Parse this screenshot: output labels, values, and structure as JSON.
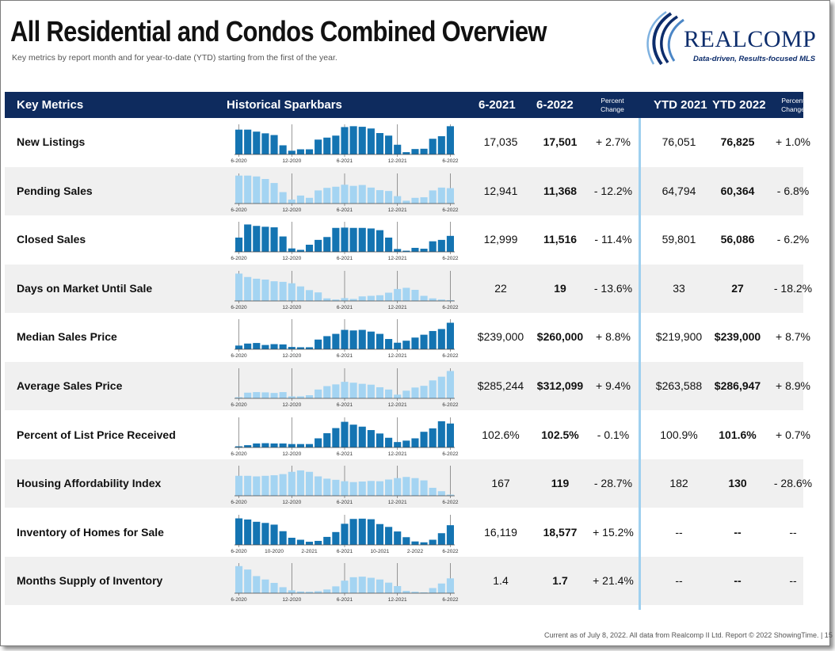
{
  "header": {
    "title": "All Residential and Condos Combined Overview",
    "subtitle": "Key metrics by report month and for year-to-date (YTD) starting from the first of the year."
  },
  "logo": {
    "name": "REALCOMP",
    "tagline": "Data-driven, Results-focused MLS"
  },
  "table_header": {
    "key_metrics": "Key Metrics",
    "historical": "Historical Sparkbars",
    "col_6_2021": "6-2021",
    "col_6_2022": "6-2022",
    "pct_change_1": "Percent",
    "pct_change_2": "Change",
    "ytd_2021": "YTD 2021",
    "ytd_2022": "YTD 2022"
  },
  "colors": {
    "header_bg": "#0e2b5e",
    "dark_bar": "#1474b2",
    "light_bar": "#a4d4f2",
    "divider": "#9fd0ef",
    "alt_row": "#f0f0f0"
  },
  "sparkbar_labels_default": [
    "6-2020",
    "12-2020",
    "6-2021",
    "12-2021",
    "6-2022"
  ],
  "sparkbar_labels_inventory": [
    "6-2020",
    "10-2020",
    "2-2021",
    "6-2021",
    "10-2021",
    "2-2022",
    "6-2022"
  ],
  "rows": [
    {
      "metric": "New Listings",
      "v2021": "17,035",
      "v2022": "17,501",
      "pct": "+ 2.7%",
      "ytd2021": "76,051",
      "ytd2022": "76,825",
      "ytdpct": "+ 1.0%",
      "style": "dark",
      "labels": "default",
      "bars": [
        0.87,
        0.87,
        0.8,
        0.74,
        0.68,
        0.32,
        0.13,
        0.18,
        0.18,
        0.52,
        0.59,
        0.66,
        0.96,
        0.99,
        0.97,
        0.91,
        0.75,
        0.66,
        0.34,
        0.08,
        0.19,
        0.2,
        0.55,
        0.64,
        0.99
      ]
    },
    {
      "metric": "Pending Sales",
      "v2021": "12,941",
      "v2022": "11,368",
      "pct": "- 12.2%",
      "ytd2021": "64,794",
      "ytd2022": "60,364",
      "ytdpct": "- 6.8%",
      "style": "light",
      "labels": "default",
      "bars": [
        0.98,
        0.98,
        0.95,
        0.86,
        0.72,
        0.4,
        0.14,
        0.28,
        0.2,
        0.46,
        0.55,
        0.59,
        0.66,
        0.62,
        0.65,
        0.56,
        0.47,
        0.44,
        0.26,
        0.1,
        0.2,
        0.22,
        0.46,
        0.56,
        0.54
      ]
    },
    {
      "metric": "Closed Sales",
      "v2021": "12,999",
      "v2022": "11,516",
      "pct": "- 11.4%",
      "ytd2021": "59,801",
      "ytd2022": "56,086",
      "ytdpct": "- 6.2%",
      "style": "dark",
      "labels": "default",
      "bars": [
        0.5,
        0.96,
        0.91,
        0.88,
        0.86,
        0.54,
        0.12,
        0.07,
        0.25,
        0.42,
        0.52,
        0.84,
        0.85,
        0.84,
        0.84,
        0.82,
        0.76,
        0.5,
        0.1,
        0.04,
        0.14,
        0.11,
        0.37,
        0.42,
        0.56
      ]
    },
    {
      "metric": "Days on Market Until Sale",
      "v2021": "22",
      "v2022": "19",
      "pct": "- 13.6%",
      "ytd2021": "33",
      "ytd2022": "27",
      "ytdpct": "- 18.2%",
      "style": "light",
      "labels": "default",
      "bars": [
        0.96,
        0.84,
        0.78,
        0.75,
        0.69,
        0.67,
        0.62,
        0.51,
        0.38,
        0.3,
        0.09,
        0.05,
        0.1,
        0.07,
        0.16,
        0.18,
        0.2,
        0.29,
        0.42,
        0.46,
        0.39,
        0.18,
        0.09,
        0.05,
        0.03
      ]
    },
    {
      "metric": "Median Sales Price",
      "v2021": "$239,000",
      "v2022": "$260,000",
      "pct": "+ 8.8%",
      "ytd2021": "$219,900",
      "ytd2022": "$239,000",
      "ytdpct": "+ 8.7%",
      "style": "dark",
      "labels": "default",
      "bars": [
        0.13,
        0.2,
        0.22,
        0.15,
        0.18,
        0.17,
        0.08,
        0.07,
        0.07,
        0.34,
        0.46,
        0.54,
        0.68,
        0.66,
        0.68,
        0.62,
        0.54,
        0.36,
        0.23,
        0.3,
        0.41,
        0.51,
        0.64,
        0.71,
        0.93
      ]
    },
    {
      "metric": "Average Sales Price",
      "v2021": "$285,244",
      "v2022": "$312,099",
      "pct": "+ 9.4%",
      "ytd2021": "$263,588",
      "ytd2022": "$286,947",
      "ytdpct": "+ 8.9%",
      "style": "light",
      "labels": "default",
      "bars": [
        0.04,
        0.2,
        0.22,
        0.21,
        0.19,
        0.22,
        0.07,
        0.07,
        0.11,
        0.31,
        0.43,
        0.49,
        0.58,
        0.55,
        0.51,
        0.48,
        0.39,
        0.31,
        0.13,
        0.27,
        0.38,
        0.44,
        0.63,
        0.76,
        0.96
      ]
    },
    {
      "metric": "Percent of List Price Received",
      "v2021": "102.6%",
      "v2022": "102.5%",
      "pct": "- 0.1%",
      "ytd2021": "100.9%",
      "ytd2022": "101.6%",
      "ytdpct": "+ 0.7%",
      "style": "dark",
      "labels": "default",
      "bars": [
        0.04,
        0.08,
        0.14,
        0.15,
        0.14,
        0.14,
        0.12,
        0.12,
        0.12,
        0.32,
        0.5,
        0.68,
        0.9,
        0.8,
        0.73,
        0.61,
        0.49,
        0.34,
        0.19,
        0.24,
        0.32,
        0.55,
        0.67,
        0.92,
        0.84
      ]
    },
    {
      "metric": "Housing Affordability Index",
      "v2021": "167",
      "v2022": "119",
      "pct": "- 28.7%",
      "ytd2021": "182",
      "ytd2022": "130",
      "ytdpct": "- 28.6%",
      "style": "light",
      "labels": "default",
      "bars": [
        0.7,
        0.7,
        0.68,
        0.7,
        0.72,
        0.76,
        0.84,
        0.89,
        0.84,
        0.68,
        0.6,
        0.56,
        0.51,
        0.48,
        0.5,
        0.52,
        0.51,
        0.57,
        0.62,
        0.66,
        0.62,
        0.54,
        0.28,
        0.16,
        0.04
      ]
    },
    {
      "metric": "Inventory of Homes for Sale",
      "v2021": "16,119",
      "v2022": "18,577",
      "pct": "+ 15.2%",
      "ytd2021": "--",
      "ytd2022": "--",
      "ytdpct": "--",
      "style": "dark",
      "labels": "inventory",
      "bars": [
        0.93,
        0.89,
        0.81,
        0.77,
        0.71,
        0.48,
        0.25,
        0.18,
        0.11,
        0.14,
        0.28,
        0.45,
        0.74,
        0.91,
        0.92,
        0.9,
        0.73,
        0.63,
        0.47,
        0.27,
        0.12,
        0.09,
        0.18,
        0.41,
        0.69
      ]
    },
    {
      "metric": "Months Supply of Inventory",
      "v2021": "1.4",
      "v2022": "1.7",
      "pct": "+ 21.4%",
      "ytd2021": "--",
      "ytd2022": "--",
      "ytdpct": "--",
      "style": "light",
      "labels": "default",
      "bars": [
        0.95,
        0.83,
        0.6,
        0.48,
        0.36,
        0.21,
        0.1,
        0.06,
        0.05,
        0.07,
        0.13,
        0.24,
        0.44,
        0.56,
        0.58,
        0.54,
        0.48,
        0.37,
        0.25,
        0.08,
        0.05,
        0.03,
        0.18,
        0.34,
        0.52
      ]
    }
  ],
  "footer": "Current as of July 8, 2022. All data from Realcomp II Ltd. Report © 2022 ShowingTime.  |  15"
}
